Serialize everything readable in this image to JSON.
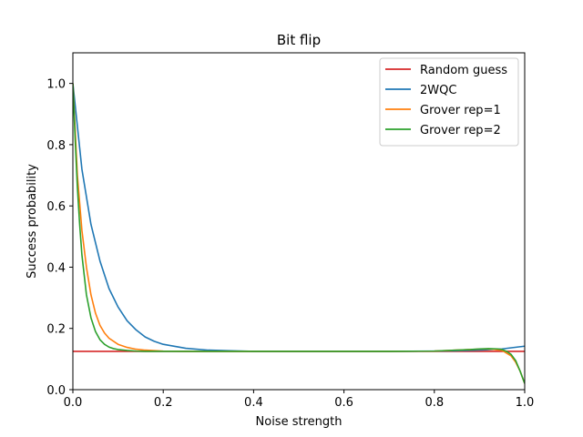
{
  "chart_data": {
    "type": "line",
    "title": "Bit flip",
    "xlabel": "Noise strength",
    "ylabel": "Success probability",
    "xlim": [
      0.0,
      1.0
    ],
    "ylim": [
      0.0,
      1.1
    ],
    "xticks": [
      0.0,
      0.2,
      0.4,
      0.6,
      0.8,
      1.0
    ],
    "yticks": [
      0.0,
      0.2,
      0.4,
      0.6,
      0.8,
      1.0
    ],
    "xtick_labels": [
      "0.0",
      "0.2",
      "0.4",
      "0.6",
      "0.8",
      "1.0"
    ],
    "ytick_labels": [
      "0.0",
      "0.2",
      "0.4",
      "0.6",
      "0.8",
      "1.0"
    ],
    "grid": false,
    "legend_position": "top-right",
    "series": [
      {
        "name": "Random guess",
        "color": "#d62728",
        "x": [
          0.0,
          1.0
        ],
        "y": [
          0.125,
          0.125
        ]
      },
      {
        "name": "2WQC",
        "color": "#1f77b4",
        "x": [
          0.0,
          0.02,
          0.04,
          0.06,
          0.08,
          0.1,
          0.12,
          0.14,
          0.16,
          0.18,
          0.2,
          0.25,
          0.3,
          0.35,
          0.4,
          0.5,
          0.6,
          0.7,
          0.8,
          0.85,
          0.9,
          0.95,
          1.0
        ],
        "y": [
          1.0,
          0.72,
          0.54,
          0.42,
          0.33,
          0.27,
          0.225,
          0.195,
          0.172,
          0.158,
          0.148,
          0.135,
          0.129,
          0.127,
          0.125,
          0.125,
          0.125,
          0.125,
          0.126,
          0.127,
          0.129,
          0.133,
          0.142
        ]
      },
      {
        "name": "Grover rep=1",
        "color": "#ff7f0e",
        "x": [
          0.0,
          0.01,
          0.02,
          0.03,
          0.04,
          0.05,
          0.06,
          0.07,
          0.08,
          0.1,
          0.12,
          0.14,
          0.16,
          0.2,
          0.25,
          0.3,
          0.4,
          0.5,
          0.6,
          0.7,
          0.8,
          0.85,
          0.88,
          0.91,
          0.93,
          0.95,
          0.97,
          0.98,
          0.99,
          1.0
        ],
        "y": [
          1.0,
          0.7,
          0.52,
          0.4,
          0.31,
          0.25,
          0.21,
          0.185,
          0.168,
          0.148,
          0.138,
          0.132,
          0.129,
          0.126,
          0.125,
          0.125,
          0.125,
          0.125,
          0.125,
          0.125,
          0.126,
          0.129,
          0.131,
          0.133,
          0.132,
          0.128,
          0.11,
          0.09,
          0.06,
          0.02
        ]
      },
      {
        "name": "Grover rep=2",
        "color": "#2ca02c",
        "x": [
          0.0,
          0.005,
          0.01,
          0.015,
          0.02,
          0.03,
          0.04,
          0.05,
          0.06,
          0.07,
          0.08,
          0.09,
          0.1,
          0.12,
          0.14,
          0.16,
          0.2,
          0.3,
          0.4,
          0.5,
          0.6,
          0.7,
          0.8,
          0.85,
          0.88,
          0.9,
          0.92,
          0.94,
          0.95,
          0.96,
          0.97,
          0.98,
          0.99,
          1.0
        ],
        "y": [
          1.0,
          0.82,
          0.66,
          0.54,
          0.44,
          0.31,
          0.235,
          0.19,
          0.163,
          0.148,
          0.139,
          0.134,
          0.131,
          0.128,
          0.126,
          0.125,
          0.125,
          0.125,
          0.125,
          0.125,
          0.125,
          0.125,
          0.126,
          0.129,
          0.131,
          0.133,
          0.134,
          0.133,
          0.131,
          0.125,
          0.115,
          0.095,
          0.06,
          0.02
        ]
      }
    ]
  }
}
